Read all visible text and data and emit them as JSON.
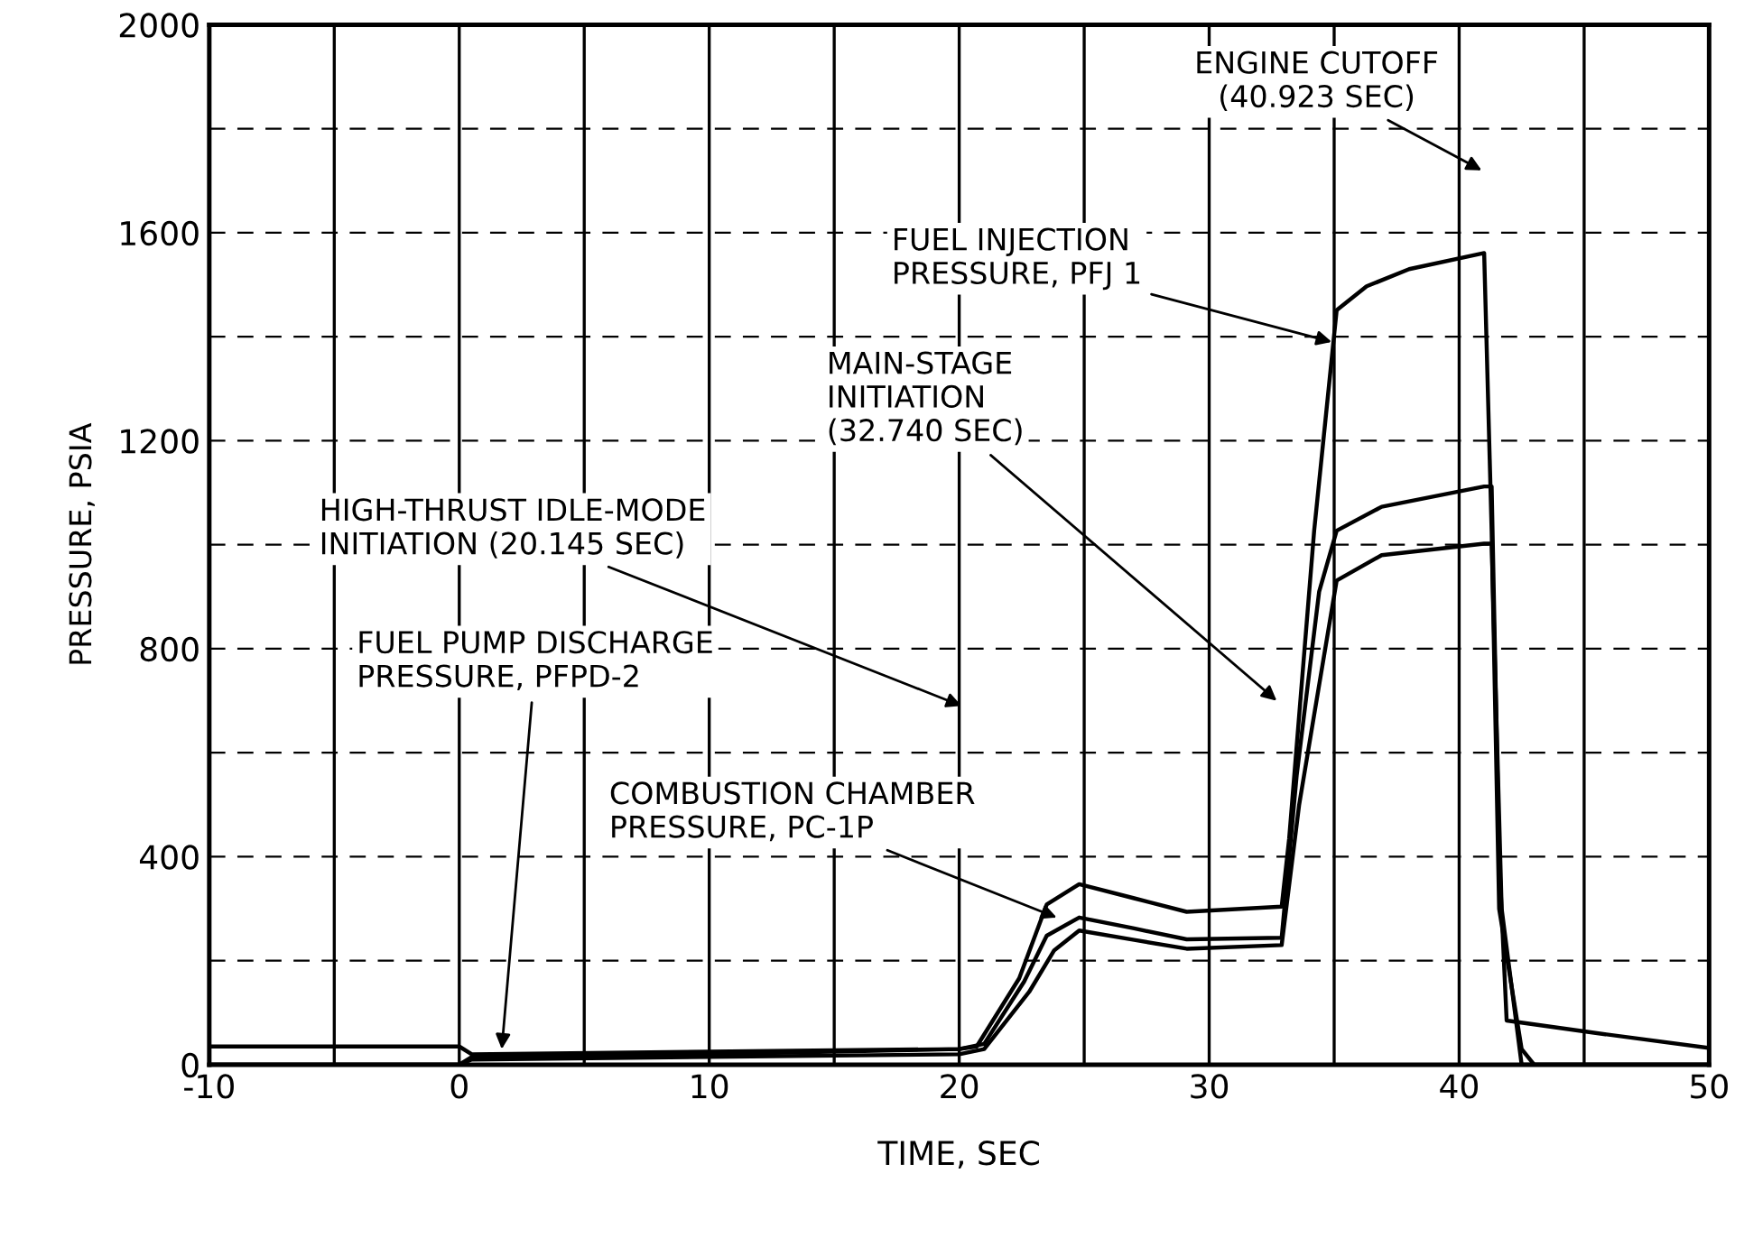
{
  "chart_data": {
    "type": "line",
    "xlabel": "TIME, SEC",
    "ylabel": "PRESSURE, PSIA",
    "xlim": [
      -10,
      50
    ],
    "ylim": [
      0,
      2000
    ],
    "xticks": [
      -10,
      {
        "value": -5,
        "label": null
      },
      0,
      {
        "value": 5,
        "label": null
      },
      10,
      {
        "value": 15,
        "label": null
      },
      20,
      {
        "value": 25,
        "label": null
      },
      30,
      {
        "value": 35,
        "label": null
      },
      40,
      {
        "value": 45,
        "label": null
      },
      50
    ],
    "yticks": [
      0,
      {
        "value": 200,
        "label": null
      },
      400,
      {
        "value": 600,
        "label": null
      },
      800,
      {
        "value": 1000,
        "label": null
      },
      1200,
      {
        "value": 1400,
        "label": null
      },
      1600,
      {
        "value": 1800,
        "label": null
      },
      2000
    ],
    "grid": true,
    "marker": "none",
    "line_style": "solid",
    "series": [
      {
        "color": "#000000",
        "x": [
          -10,
          0,
          0.5,
          10,
          20,
          20.7,
          22.4,
          23.5,
          24.8,
          27,
          29.1,
          32.9,
          33.2,
          34.2,
          35.1,
          36.3,
          38,
          41,
          41.3,
          41.6,
          42.5,
          43,
          50
        ],
        "values": [
          0,
          0,
          15,
          20,
          30,
          35,
          166,
          308,
          347,
          320,
          294,
          304,
          435,
          1027,
          1451,
          1497,
          1530,
          1561,
          1027,
          300,
          30,
          0,
          0
        ]
      },
      {
        "color": "#000000",
        "x": [
          -10,
          0,
          0.5,
          10,
          20,
          21,
          22.6,
          23.5,
          24.8,
          27,
          29.1,
          32.9,
          33.5,
          34.4,
          35.1,
          36.9,
          41,
          41.3,
          41.6,
          41.9,
          45,
          50
        ],
        "values": [
          35,
          35,
          20,
          25,
          30,
          40,
          160,
          248,
          283,
          262,
          241,
          244,
          556,
          910,
          1027,
          1073,
          1112,
          1112,
          400,
          85,
          64,
          32
        ]
      },
      {
        "color": "#000000",
        "x": [
          -10,
          0,
          0.5,
          10,
          20,
          21,
          22.8,
          23.8,
          24.8,
          27,
          29.1,
          32.9,
          33.6,
          34.2,
          35.1,
          36.9,
          41,
          41.3,
          41.7,
          42.5,
          50
        ],
        "values": [
          0,
          0,
          10,
          15,
          20,
          30,
          140,
          220,
          258,
          240,
          223,
          230,
          500,
          673,
          931,
          980,
          1002,
          1002,
          300,
          0,
          0
        ]
      }
    ],
    "annotations": [
      "ENGINE CUTOFF\n(40.923 SEC)",
      {
        "text": "FUEL INJECTION\nPRESSURE, PFJ 1",
        "x": 34.9,
        "y": 1390
      },
      "MAIN-STAGE\nINITIATION\n(32.740 SEC)",
      "HIGH-THRUST IDLE-MODE\nINITIATION (20.145 SEC)",
      {
        "text": "FUEL PUMP DISCHARGE\nPRESSURE, PFPD-2",
        "x": 1.7,
        "y": 30
      },
      {
        "text": "COMBUSTION CHAMBER\nPRESSURE, PC-1P",
        "x": 23.9,
        "y": 283
      }
    ]
  }
}
